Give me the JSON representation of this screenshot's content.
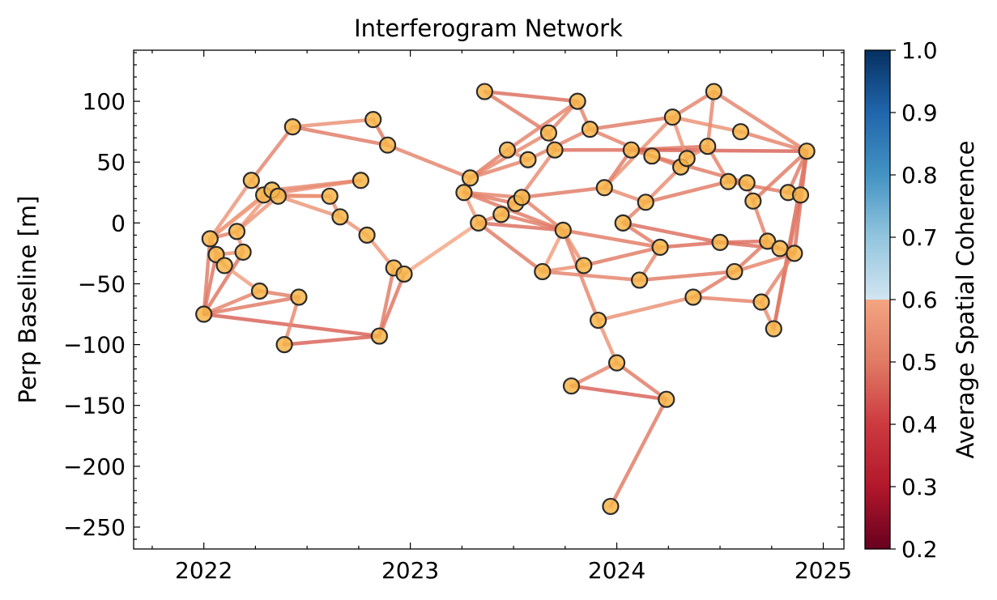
{
  "chart_data": {
    "type": "network",
    "title": "Interferogram Network",
    "ylabel": "Perp Baseline [m]",
    "xlim": [
      2021.66,
      2025.1
    ],
    "ylim": [
      -268,
      142
    ],
    "xticks": [
      2022,
      2023,
      2024,
      2025
    ],
    "xtick_labels": [
      "2022",
      "2023",
      "2024",
      "2025"
    ],
    "yticks": [
      100,
      50,
      0,
      -50,
      -100,
      -150,
      -200,
      -250
    ],
    "ytick_labels": [
      "100",
      "50",
      "0",
      "−50",
      "−100",
      "−150",
      "−200",
      "−250"
    ],
    "colorbar": {
      "label": "Average Spatial Coherence",
      "range": [
        0.2,
        1.0
      ],
      "ticks": [
        0.2,
        0.3,
        0.4,
        0.5,
        0.6,
        0.7,
        0.8,
        0.9,
        1.0
      ],
      "tick_labels": [
        "0.2",
        "0.3",
        "0.4",
        "0.5",
        "0.6",
        "0.7",
        "0.8",
        "0.9",
        "1.0"
      ],
      "colormap": "RdBu"
    },
    "node_color": "#f7b549",
    "nodes": [
      [
        2022.0,
        -75
      ],
      [
        2022.03,
        -13
      ],
      [
        2022.06,
        -26
      ],
      [
        2022.1,
        -35
      ],
      [
        2022.16,
        -7
      ],
      [
        2022.19,
        -24
      ],
      [
        2022.23,
        35
      ],
      [
        2022.27,
        -56
      ],
      [
        2022.29,
        23
      ],
      [
        2022.33,
        27
      ],
      [
        2022.36,
        22
      ],
      [
        2022.39,
        -100
      ],
      [
        2022.43,
        79
      ],
      [
        2022.46,
        -61
      ],
      [
        2022.61,
        22
      ],
      [
        2022.66,
        5
      ],
      [
        2022.76,
        35
      ],
      [
        2022.79,
        -10
      ],
      [
        2022.82,
        85
      ],
      [
        2022.85,
        -93
      ],
      [
        2022.89,
        64
      ],
      [
        2022.92,
        -37
      ],
      [
        2022.97,
        -42
      ],
      [
        2023.26,
        25
      ],
      [
        2023.29,
        37
      ],
      [
        2023.33,
        0
      ],
      [
        2023.36,
        108
      ],
      [
        2023.44,
        7
      ],
      [
        2023.47,
        60
      ],
      [
        2023.51,
        16
      ],
      [
        2023.54,
        21
      ],
      [
        2023.57,
        52
      ],
      [
        2023.64,
        -40
      ],
      [
        2023.67,
        74
      ],
      [
        2023.7,
        60
      ],
      [
        2023.74,
        -6
      ],
      [
        2023.78,
        -134
      ],
      [
        2023.81,
        100
      ],
      [
        2023.84,
        -35
      ],
      [
        2023.87,
        77
      ],
      [
        2023.91,
        -80
      ],
      [
        2023.94,
        29
      ],
      [
        2024.0,
        -115
      ],
      [
        2024.03,
        0
      ],
      [
        2024.07,
        60
      ],
      [
        2024.11,
        -47
      ],
      [
        2024.14,
        17
      ],
      [
        2024.17,
        55
      ],
      [
        2024.21,
        -20
      ],
      [
        2024.24,
        -145
      ],
      [
        2024.27,
        87
      ],
      [
        2024.31,
        46
      ],
      [
        2024.34,
        53
      ],
      [
        2024.37,
        -61
      ],
      [
        2024.44,
        63
      ],
      [
        2024.47,
        108
      ],
      [
        2024.5,
        -16
      ],
      [
        2024.54,
        34
      ],
      [
        2024.57,
        -40
      ],
      [
        2024.6,
        75
      ],
      [
        2024.63,
        33
      ],
      [
        2024.66,
        18
      ],
      [
        2024.7,
        -65
      ],
      [
        2024.73,
        -15
      ],
      [
        2024.76,
        -87
      ],
      [
        2024.79,
        -21
      ],
      [
        2024.83,
        25
      ],
      [
        2024.86,
        -25
      ],
      [
        2024.89,
        23
      ],
      [
        2024.92,
        59
      ],
      [
        2023.97,
        -233
      ]
    ],
    "edges": [
      [
        0,
        1,
        0.5
      ],
      [
        0,
        2,
        0.49
      ],
      [
        0,
        5,
        0.49
      ],
      [
        0,
        7,
        0.52
      ],
      [
        0,
        13,
        0.5
      ],
      [
        0,
        19,
        0.46
      ],
      [
        1,
        2,
        0.55
      ],
      [
        1,
        3,
        0.54
      ],
      [
        1,
        4,
        0.52
      ],
      [
        1,
        6,
        0.56
      ],
      [
        1,
        8,
        0.55
      ],
      [
        1,
        9,
        0.58
      ],
      [
        2,
        3,
        0.57
      ],
      [
        2,
        5,
        0.56
      ],
      [
        3,
        7,
        0.58
      ],
      [
        4,
        5,
        0.55
      ],
      [
        4,
        9,
        0.57
      ],
      [
        4,
        10,
        0.56
      ],
      [
        6,
        8,
        0.56
      ],
      [
        6,
        12,
        0.52
      ],
      [
        8,
        9,
        0.57
      ],
      [
        8,
        10,
        0.56
      ],
      [
        8,
        14,
        0.55
      ],
      [
        8,
        16,
        0.54
      ],
      [
        9,
        10,
        0.58
      ],
      [
        9,
        16,
        0.53
      ],
      [
        10,
        14,
        0.55
      ],
      [
        10,
        15,
        0.56
      ],
      [
        11,
        13,
        0.53
      ],
      [
        11,
        19,
        0.46
      ],
      [
        12,
        18,
        0.55
      ],
      [
        12,
        20,
        0.5
      ],
      [
        13,
        7,
        0.51
      ],
      [
        14,
        15,
        0.54
      ],
      [
        15,
        17,
        0.56
      ],
      [
        17,
        21,
        0.57
      ],
      [
        18,
        20,
        0.5
      ],
      [
        19,
        21,
        0.5
      ],
      [
        19,
        22,
        0.49
      ],
      [
        20,
        24,
        0.52
      ],
      [
        21,
        22,
        0.58
      ],
      [
        22,
        25,
        0.6
      ],
      [
        23,
        24,
        0.52
      ],
      [
        23,
        25,
        0.58
      ],
      [
        23,
        29,
        0.5
      ],
      [
        23,
        30,
        0.52
      ],
      [
        23,
        35,
        0.5
      ],
      [
        24,
        28,
        0.51
      ],
      [
        24,
        33,
        0.53
      ],
      [
        24,
        31,
        0.52
      ],
      [
        25,
        27,
        0.51
      ],
      [
        25,
        35,
        0.48
      ],
      [
        25,
        32,
        0.5
      ],
      [
        26,
        37,
        0.48
      ],
      [
        26,
        33,
        0.5
      ],
      [
        27,
        30,
        0.52
      ],
      [
        27,
        35,
        0.5
      ],
      [
        28,
        31,
        0.55
      ],
      [
        28,
        37,
        0.52
      ],
      [
        29,
        30,
        0.55
      ],
      [
        29,
        34,
        0.54
      ],
      [
        30,
        41,
        0.5
      ],
      [
        30,
        35,
        0.52
      ],
      [
        31,
        39,
        0.52
      ],
      [
        32,
        35,
        0.58
      ],
      [
        32,
        45,
        0.52
      ],
      [
        32,
        38,
        0.55
      ],
      [
        33,
        37,
        0.53
      ],
      [
        33,
        34,
        0.55
      ],
      [
        34,
        44,
        0.48
      ],
      [
        35,
        38,
        0.55
      ],
      [
        35,
        48,
        0.5
      ],
      [
        35,
        40,
        0.53
      ],
      [
        36,
        42,
        0.52
      ],
      [
        36,
        49,
        0.46
      ],
      [
        37,
        39,
        0.52
      ],
      [
        38,
        48,
        0.5
      ],
      [
        39,
        50,
        0.5
      ],
      [
        39,
        47,
        0.52
      ],
      [
        40,
        42,
        0.56
      ],
      [
        40,
        53,
        0.55
      ],
      [
        41,
        46,
        0.54
      ],
      [
        41,
        50,
        0.55
      ],
      [
        41,
        44,
        0.5
      ],
      [
        42,
        49,
        0.5
      ],
      [
        43,
        46,
        0.52
      ],
      [
        43,
        48,
        0.5
      ],
      [
        43,
        56,
        0.48
      ],
      [
        44,
        47,
        0.52
      ],
      [
        44,
        54,
        0.49
      ],
      [
        44,
        69,
        0.46
      ],
      [
        45,
        48,
        0.53
      ],
      [
        45,
        58,
        0.5
      ],
      [
        46,
        57,
        0.5
      ],
      [
        46,
        51,
        0.54
      ],
      [
        47,
        51,
        0.53
      ],
      [
        47,
        60,
        0.5
      ],
      [
        48,
        56,
        0.48
      ],
      [
        49,
        70,
        0.5
      ],
      [
        50,
        55,
        0.52
      ],
      [
        50,
        52,
        0.56
      ],
      [
        50,
        59,
        0.55
      ],
      [
        51,
        52,
        0.55
      ],
      [
        52,
        54,
        0.55
      ],
      [
        53,
        62,
        0.52
      ],
      [
        53,
        58,
        0.5
      ],
      [
        54,
        55,
        0.53
      ],
      [
        54,
        57,
        0.52
      ],
      [
        55,
        69,
        0.52
      ],
      [
        56,
        63,
        0.48
      ],
      [
        56,
        65,
        0.48
      ],
      [
        57,
        60,
        0.52
      ],
      [
        57,
        66,
        0.5
      ],
      [
        58,
        63,
        0.5
      ],
      [
        58,
        67,
        0.52
      ],
      [
        59,
        69,
        0.52
      ],
      [
        60,
        61,
        0.55
      ],
      [
        61,
        69,
        0.5
      ],
      [
        61,
        63,
        0.52
      ],
      [
        62,
        64,
        0.54
      ],
      [
        63,
        65,
        0.52
      ],
      [
        64,
        69,
        0.48
      ],
      [
        64,
        68,
        0.5
      ],
      [
        65,
        67,
        0.5
      ],
      [
        66,
        68,
        0.52
      ],
      [
        66,
        69,
        0.5
      ],
      [
        67,
        69,
        0.48
      ],
      [
        68,
        69,
        0.5
      ],
      [
        62,
        67,
        0.52
      ]
    ]
  }
}
